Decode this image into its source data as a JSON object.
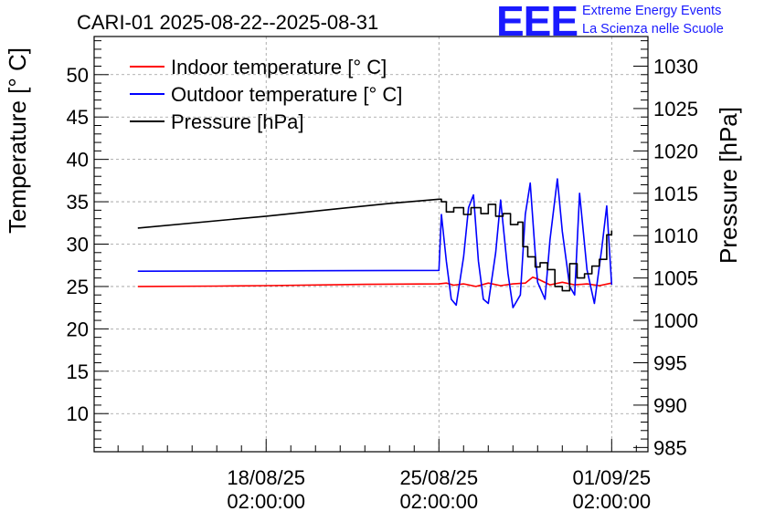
{
  "chart_data": {
    "type": "line",
    "title": "CARI-01 2025-08-22--2025-08-31",
    "ylabel": "Temperature [° C]",
    "y2label": "Pressure [hPa]",
    "ylim": [
      5.5,
      54.5
    ],
    "y2lim": [
      984.5,
      1033.5
    ],
    "yticks": [
      "10",
      "15",
      "20",
      "25",
      "30",
      "35",
      "40",
      "45",
      "50"
    ],
    "y2ticks": [
      "985",
      "990",
      "995",
      "1000",
      "1005",
      "1010",
      "1015",
      "1020",
      "1025",
      "1030"
    ],
    "xticks": [
      {
        "date": "18/08/25",
        "time": "02:00:00",
        "t": 0
      },
      {
        "date": "25/08/25",
        "time": "02:00:00",
        "t": 7
      },
      {
        "date": "01/09/25",
        "time": "02:00:00",
        "t": 14
      }
    ],
    "xlim": [
      -6.97,
      15.47
    ],
    "grid": true,
    "legend_position": "top-left",
    "series": [
      {
        "name": "Indoor temperature [° C]",
        "color": "#ff0000",
        "axis": "left",
        "x": [
          -5.2,
          -2.0,
          0.0,
          4.0,
          7.0,
          7.3,
          7.6,
          8.0,
          8.5,
          9.0,
          9.5,
          10.0,
          10.5,
          10.8,
          11.0,
          11.5,
          12.0,
          12.5,
          13.0,
          13.5,
          14.0
        ],
        "y": [
          25.0,
          25.05,
          25.1,
          25.25,
          25.3,
          25.4,
          25.15,
          25.3,
          25.0,
          25.4,
          25.1,
          25.3,
          25.4,
          26.1,
          25.9,
          25.2,
          25.5,
          25.2,
          25.3,
          25.1,
          25.4
        ]
      },
      {
        "name": "Outdoor temperature [° C]",
        "color": "#0000ff",
        "axis": "left",
        "x": [
          -5.2,
          7.0,
          7.1,
          7.3,
          7.5,
          7.7,
          8.0,
          8.2,
          8.4,
          8.6,
          8.8,
          9.0,
          9.3,
          9.5,
          9.8,
          10.0,
          10.3,
          10.5,
          10.7,
          10.9,
          11.0,
          11.3,
          11.5,
          11.8,
          12.0,
          12.3,
          12.5,
          12.7,
          13.0,
          13.3,
          13.6,
          13.8,
          14.0
        ],
        "y": [
          26.8,
          26.9,
          33.5,
          28.0,
          23.5,
          22.8,
          28.5,
          34.3,
          35.8,
          28.0,
          23.5,
          23.0,
          29.0,
          35.2,
          26.5,
          22.5,
          24.0,
          33.5,
          37.2,
          29.0,
          25.5,
          23.5,
          30.5,
          37.7,
          31.5,
          25.0,
          24.0,
          36.0,
          27.0,
          23.0,
          29.5,
          34.5,
          25.2
        ]
      },
      {
        "name": "Pressure [hPa]",
        "color": "#000000",
        "axis": "right",
        "x": [
          -5.2,
          0.0,
          5.0,
          7.0,
          7.1,
          7.3,
          7.6,
          8.0,
          8.3,
          8.7,
          9.0,
          9.3,
          9.6,
          9.9,
          10.2,
          10.4,
          10.6,
          10.9,
          11.1,
          11.4,
          11.7,
          12.0,
          12.3,
          12.6,
          12.9,
          13.2,
          13.5,
          13.8,
          14.0
        ],
        "y": [
          1010.9,
          1012.3,
          1013.8,
          1014.3,
          1014.0,
          1012.8,
          1013.3,
          1012.5,
          1013.3,
          1012.6,
          1013.7,
          1012.3,
          1012.6,
          1011.3,
          1011.6,
          1008.7,
          1007.5,
          1006.3,
          1006.8,
          1006.0,
          1004.0,
          1003.5,
          1006.7,
          1005.0,
          1005.5,
          1006.4,
          1007.2,
          1010.1,
          1010.6
        ]
      }
    ]
  },
  "logo": {
    "text": "EEE",
    "line1": "Extreme Energy Events",
    "line2": "La Scienza nelle Scuole",
    "color": "#1a1aff"
  }
}
